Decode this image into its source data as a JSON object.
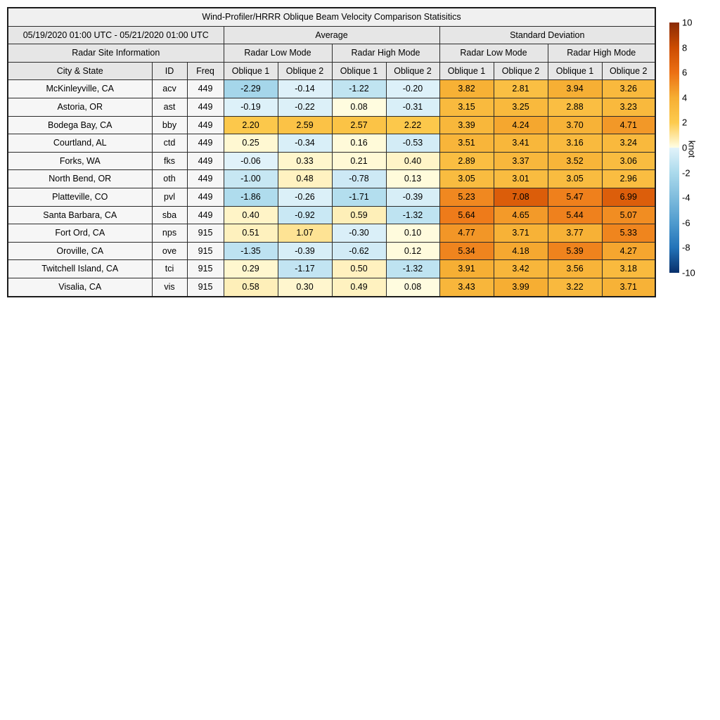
{
  "chart_data": {
    "type": "heatmap-table",
    "title": "Wind-Profiler/HRRR Oblique Beam Velocity Comparison Statisitics",
    "period": "05/19/2020 01:00 UTC - 05/21/2020 01:00 UTC",
    "sections": {
      "site": "Radar Site Information",
      "groups": [
        "Average",
        "Standard Deviation"
      ],
      "modes": [
        "Radar Low Mode",
        "Radar High Mode",
        "Radar Low Mode",
        "Radar High Mode"
      ]
    },
    "site_columns": [
      "City & State",
      "ID",
      "Freq"
    ],
    "oblique_labels": [
      "Oblique 1",
      "Oblique 2",
      "Oblique 1",
      "Oblique 2",
      "Oblique 1",
      "Oblique 2",
      "Oblique 1",
      "Oblique 2"
    ],
    "rows": [
      {
        "city": "McKinleyville, CA",
        "id": "acv",
        "freq": "449",
        "values": [
          "-2.29",
          "-0.14",
          "-1.22",
          "-0.20",
          "3.82",
          "2.81",
          "3.94",
          "3.26"
        ]
      },
      {
        "city": "Astoria, OR",
        "id": "ast",
        "freq": "449",
        "values": [
          "-0.19",
          "-0.22",
          "0.08",
          "-0.31",
          "3.15",
          "3.25",
          "2.88",
          "3.23"
        ]
      },
      {
        "city": "Bodega Bay, CA",
        "id": "bby",
        "freq": "449",
        "values": [
          "2.20",
          "2.59",
          "2.57",
          "2.22",
          "3.39",
          "4.24",
          "3.70",
          "4.71"
        ]
      },
      {
        "city": "Courtland, AL",
        "id": "ctd",
        "freq": "449",
        "values": [
          "0.25",
          "-0.34",
          "0.16",
          "-0.53",
          "3.51",
          "3.41",
          "3.16",
          "3.24"
        ]
      },
      {
        "city": "Forks, WA",
        "id": "fks",
        "freq": "449",
        "values": [
          "-0.06",
          "0.33",
          "0.21",
          "0.40",
          "2.89",
          "3.37",
          "3.52",
          "3.06"
        ]
      },
      {
        "city": "North Bend, OR",
        "id": "oth",
        "freq": "449",
        "values": [
          "-1.00",
          "0.48",
          "-0.78",
          "0.13",
          "3.05",
          "3.01",
          "3.05",
          "2.96"
        ]
      },
      {
        "city": "Platteville, CO",
        "id": "pvl",
        "freq": "449",
        "values": [
          "-1.86",
          "-0.26",
          "-1.71",
          "-0.39",
          "5.23",
          "7.08",
          "5.47",
          "6.99"
        ]
      },
      {
        "city": "Santa Barbara, CA",
        "id": "sba",
        "freq": "449",
        "values": [
          "0.40",
          "-0.92",
          "0.59",
          "-1.32",
          "5.64",
          "4.65",
          "5.44",
          "5.07"
        ]
      },
      {
        "city": "Fort Ord, CA",
        "id": "nps",
        "freq": "915",
        "values": [
          "0.51",
          "1.07",
          "-0.30",
          "0.10",
          "4.77",
          "3.71",
          "3.77",
          "5.33"
        ]
      },
      {
        "city": "Oroville, CA",
        "id": "ove",
        "freq": "915",
        "values": [
          "-1.35",
          "-0.39",
          "-0.62",
          "0.12",
          "5.34",
          "4.18",
          "5.39",
          "4.27"
        ]
      },
      {
        "city": "Twitchell Island, CA",
        "id": "tci",
        "freq": "915",
        "values": [
          "0.29",
          "-1.17",
          "0.50",
          "-1.32",
          "3.91",
          "3.42",
          "3.56",
          "3.18"
        ]
      },
      {
        "city": "Visalia, CA",
        "id": "vis",
        "freq": "915",
        "values": [
          "0.58",
          "0.30",
          "0.49",
          "0.08",
          "3.43",
          "3.99",
          "3.22",
          "3.71"
        ]
      }
    ],
    "colorbar": {
      "label": "knot",
      "min": -10,
      "max": 10,
      "ticks": [
        {
          "v": 10,
          "label": "10"
        },
        {
          "v": 8,
          "label": "8"
        },
        {
          "v": 6,
          "label": "6"
        },
        {
          "v": 4,
          "label": "4"
        },
        {
          "v": 2,
          "label": "2"
        },
        {
          "v": 0,
          "label": "0"
        },
        {
          "v": -2,
          "label": "-2"
        },
        {
          "v": -4,
          "label": "-4"
        },
        {
          "v": -6,
          "label": "-6"
        },
        {
          "v": -8,
          "label": "-8"
        },
        {
          "v": -10,
          "label": "-10"
        }
      ],
      "stops": [
        {
          "v": -10,
          "c": "#08306b"
        },
        {
          "v": -8,
          "c": "#2373b8"
        },
        {
          "v": -6,
          "c": "#4f9bce"
        },
        {
          "v": -4,
          "c": "#7fbcdd"
        },
        {
          "v": -2,
          "c": "#abdaec"
        },
        {
          "v": -0.001,
          "c": "#e2f3fa"
        },
        {
          "v": 0,
          "c": "#fffee5"
        },
        {
          "v": 2,
          "c": "#fdcb4e"
        },
        {
          "v": 4,
          "c": "#f6ae33"
        },
        {
          "v": 6,
          "c": "#ec7014"
        },
        {
          "v": 8,
          "c": "#cc4c02"
        },
        {
          "v": 10,
          "c": "#8a2b06"
        }
      ]
    }
  }
}
